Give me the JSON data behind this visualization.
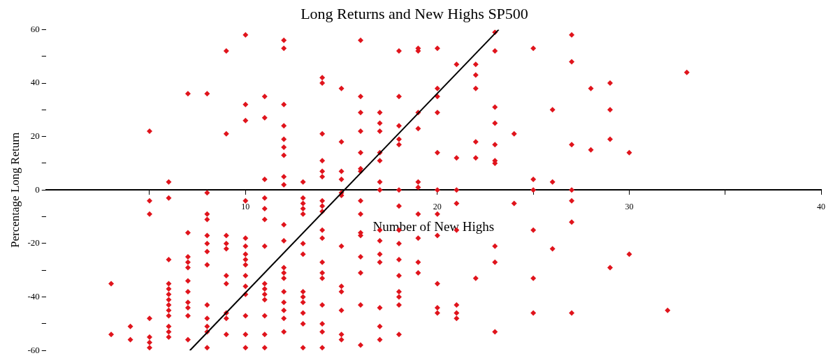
{
  "chart_data": {
    "type": "scatter",
    "title": "Long Returns and New Highs SP500",
    "xlabel": "Number of New Highs",
    "ylabel": "Percentage Long Return",
    "xlim": [
      -0.4,
      40
    ],
    "ylim": [
      -60,
      60
    ],
    "xticks": [
      {
        "value": 5,
        "label": null
      },
      10,
      {
        "value": 15,
        "label": null
      },
      20,
      {
        "value": 25,
        "label": null
      },
      30,
      {
        "value": 35,
        "label": null
      },
      40
    ],
    "yticks": [
      -60,
      {
        "value": -50,
        "label": null
      },
      -40,
      {
        "value": -30,
        "label": null
      },
      -20,
      {
        "value": -10,
        "label": null
      },
      0,
      {
        "value": 10,
        "label": null
      },
      20,
      {
        "value": 30,
        "label": null
      },
      40,
      {
        "value": 50,
        "label": null
      },
      60
    ],
    "grid": false,
    "legend": false,
    "marker": "diamond",
    "series": [
      {
        "type": "scatter",
        "color": "#e0141c",
        "x": [
          3,
          3,
          4,
          4,
          5,
          5,
          5,
          5,
          5,
          5,
          5,
          6,
          6,
          6,
          6,
          6,
          6,
          6,
          6,
          6,
          6,
          6,
          6,
          6,
          7,
          7,
          7,
          7,
          7,
          7,
          7,
          7,
          7,
          7,
          7,
          8,
          8,
          8,
          8,
          8,
          8,
          8,
          8,
          8,
          8,
          8,
          8,
          8,
          9,
          9,
          9,
          9,
          9,
          9,
          9,
          9,
          9,
          9,
          10,
          10,
          10,
          10,
          10,
          10,
          10,
          10,
          10,
          10,
          10,
          10,
          10,
          10,
          10,
          11,
          11,
          11,
          11,
          11,
          11,
          11,
          11,
          11,
          11,
          11,
          11,
          11,
          11,
          12,
          12,
          12,
          12,
          12,
          12,
          12,
          12,
          12,
          12,
          12,
          12,
          12,
          12,
          12,
          12,
          12,
          12,
          12,
          13,
          13,
          13,
          13,
          13,
          13,
          13,
          13,
          13,
          13,
          13,
          13,
          13,
          14,
          14,
          14,
          14,
          14,
          14,
          14,
          14,
          14,
          14,
          14,
          14,
          14,
          14,
          14,
          14,
          14,
          14,
          15,
          15,
          15,
          15,
          15,
          15,
          15,
          15,
          15,
          15,
          15,
          15,
          16,
          16,
          16,
          16,
          16,
          16,
          16,
          16,
          16,
          16,
          16,
          16,
          16,
          16,
          16,
          17,
          17,
          17,
          17,
          17,
          17,
          17,
          17,
          17,
          17,
          17,
          17,
          17,
          17,
          18,
          18,
          18,
          18,
          18,
          18,
          18,
          18,
          18,
          18,
          18,
          18,
          18,
          18,
          18,
          19,
          19,
          19,
          19,
          19,
          19,
          19,
          19,
          19,
          19,
          20,
          20,
          20,
          20,
          20,
          20,
          20,
          20,
          20,
          20,
          20,
          21,
          21,
          21,
          21,
          21,
          21,
          21,
          21,
          22,
          22,
          22,
          22,
          22,
          22,
          23,
          23,
          23,
          23,
          23,
          23,
          23,
          23,
          23,
          23,
          24,
          24,
          25,
          25,
          25,
          25,
          25,
          25,
          26,
          26,
          26,
          27,
          27,
          27,
          27,
          27,
          27,
          27,
          28,
          28,
          29,
          29,
          29,
          29,
          30,
          30,
          32,
          33
        ],
        "values": [
          -35,
          -54,
          -51,
          -56,
          22,
          -4,
          -9,
          -48,
          -55,
          -57,
          -59,
          3,
          -3,
          -26,
          -35,
          -37,
          -39,
          -41,
          -43,
          -45,
          -47,
          -51,
          -53,
          -55,
          36,
          -16,
          -25,
          -27,
          -29,
          -34,
          -38,
          -42,
          -44,
          -47,
          -56,
          36,
          -1,
          -9,
          -11,
          -17,
          -20,
          -23,
          -28,
          -43,
          -48,
          -51,
          -53,
          -59,
          52,
          21,
          -17,
          -20,
          -22,
          -32,
          -35,
          -46,
          -48,
          -54,
          58,
          32,
          26,
          -4,
          -18,
          -21,
          -24,
          -26,
          -28,
          -32,
          -36,
          -39,
          -47,
          -54,
          -59,
          35,
          27,
          4,
          -3,
          -7,
          -11,
          -21,
          -35,
          -37,
          -39,
          -41,
          -47,
          -54,
          -59,
          56,
          53,
          32,
          24,
          19,
          16,
          13,
          5,
          2,
          -13,
          -19,
          -29,
          -31,
          -33,
          -38,
          -42,
          -45,
          -48,
          -53,
          3,
          -3,
          -5,
          -7,
          -9,
          -20,
          -24,
          -38,
          -40,
          -42,
          -46,
          -50,
          -59,
          42,
          40,
          21,
          11,
          7,
          5,
          -4,
          -6,
          -8,
          -15,
          -18,
          -27,
          -31,
          -33,
          -43,
          -50,
          -53,
          -59,
          38,
          18,
          7,
          4,
          -1,
          -2,
          -21,
          -36,
          -38,
          -45,
          -54,
          -56,
          56,
          35,
          29,
          22,
          14,
          8,
          7,
          -4,
          -9,
          -16,
          -17,
          -25,
          -31,
          -43,
          -58,
          29,
          25,
          22,
          14,
          11,
          3,
          0,
          -15,
          -19,
          -24,
          -27,
          -44,
          -51,
          -56,
          52,
          35,
          24,
          19,
          17,
          0,
          -6,
          -15,
          -20,
          -26,
          -32,
          -38,
          -40,
          -43,
          -54,
          52,
          53,
          29,
          23,
          3,
          1,
          -9,
          -18,
          -27,
          -31,
          53,
          38,
          35,
          29,
          14,
          0,
          -9,
          -17,
          -35,
          -44,
          -46,
          47,
          12,
          0,
          -5,
          -15,
          -43,
          -46,
          -48,
          47,
          43,
          38,
          18,
          12,
          -33,
          59,
          52,
          31,
          25,
          17,
          11,
          10,
          -21,
          -27,
          -53,
          21,
          -5,
          53,
          4,
          0,
          -15,
          -33,
          -46,
          30,
          3,
          -22,
          58,
          48,
          17,
          0,
          -4,
          -12,
          -46,
          38,
          15,
          40,
          30,
          19,
          -29,
          14,
          -24,
          -45,
          44
        ]
      },
      {
        "type": "line",
        "color": "#000000",
        "marker": "none",
        "x": [
          7.1,
          23.2
        ],
        "values": [
          -60,
          60
        ]
      }
    ]
  }
}
